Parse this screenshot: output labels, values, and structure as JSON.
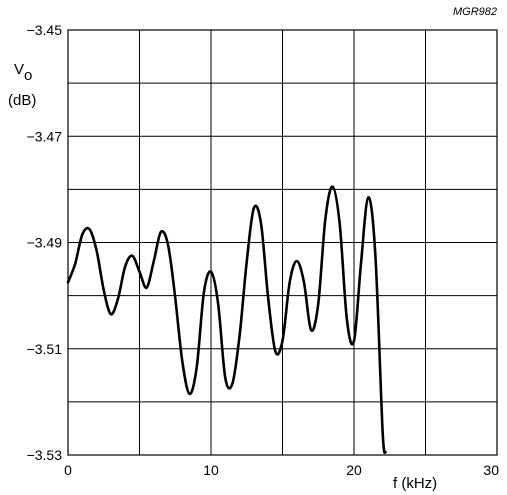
{
  "chart_data": {
    "type": "line",
    "code": "MGR982",
    "ylabel_main": "V",
    "ylabel_sub": "o",
    "ylabel_unit": "(dB)",
    "xlabel": "f (kHz)",
    "xlim": [
      0,
      30
    ],
    "ylim": [
      -3.53,
      -3.45
    ],
    "x_ticks": [
      0,
      10,
      20,
      30
    ],
    "x_tick_labels": [
      "0",
      "10",
      "20",
      "30"
    ],
    "y_ticks": [
      -3.53,
      -3.51,
      -3.49,
      -3.47,
      -3.45
    ],
    "y_tick_labels": [
      "−3.53",
      "−3.51",
      "−3.49",
      "−3.47",
      "−3.45"
    ],
    "x_grid": [
      0,
      5,
      10,
      15,
      20,
      25,
      30
    ],
    "y_grid": [
      -3.53,
      -3.52,
      -3.51,
      -3.5,
      -3.49,
      -3.48,
      -3.47,
      -3.46,
      -3.45
    ],
    "grid": true,
    "series": [
      {
        "x": [
          0,
          0.5,
          1.0,
          1.5,
          2.0,
          2.5,
          3.0,
          3.5,
          4.0,
          4.5,
          5.0,
          5.5,
          6.0,
          6.5,
          7.0,
          7.5,
          8.0,
          8.5,
          9.0,
          9.5,
          10.0,
          10.5,
          11.0,
          11.5,
          12.0,
          12.5,
          13.0,
          13.5,
          14.0,
          14.5,
          15.0,
          15.5,
          16.0,
          16.5,
          17.0,
          17.5,
          18.0,
          18.5,
          19.0,
          19.5,
          20.0,
          20.5,
          21.0,
          21.5,
          22.0,
          22.2
        ],
        "y": [
          -3.4975,
          -3.494,
          -3.4885,
          -3.4875,
          -3.4915,
          -3.499,
          -3.5035,
          -3.5005,
          -3.4945,
          -3.4925,
          -3.4955,
          -3.4985,
          -3.4935,
          -3.488,
          -3.4905,
          -3.5005,
          -3.5125,
          -3.5185,
          -3.5135,
          -3.4995,
          -3.4955,
          -3.5015,
          -3.5155,
          -3.5165,
          -3.5075,
          -3.4935,
          -3.4835,
          -3.4865,
          -3.5005,
          -3.5105,
          -3.5085,
          -3.4975,
          -3.4935,
          -3.4975,
          -3.5065,
          -3.5015,
          -3.4855,
          -3.4795,
          -3.4865,
          -3.5045,
          -3.5085,
          -3.4935,
          -3.4815,
          -3.4925,
          -3.5255,
          -3.5295
        ]
      }
    ]
  }
}
